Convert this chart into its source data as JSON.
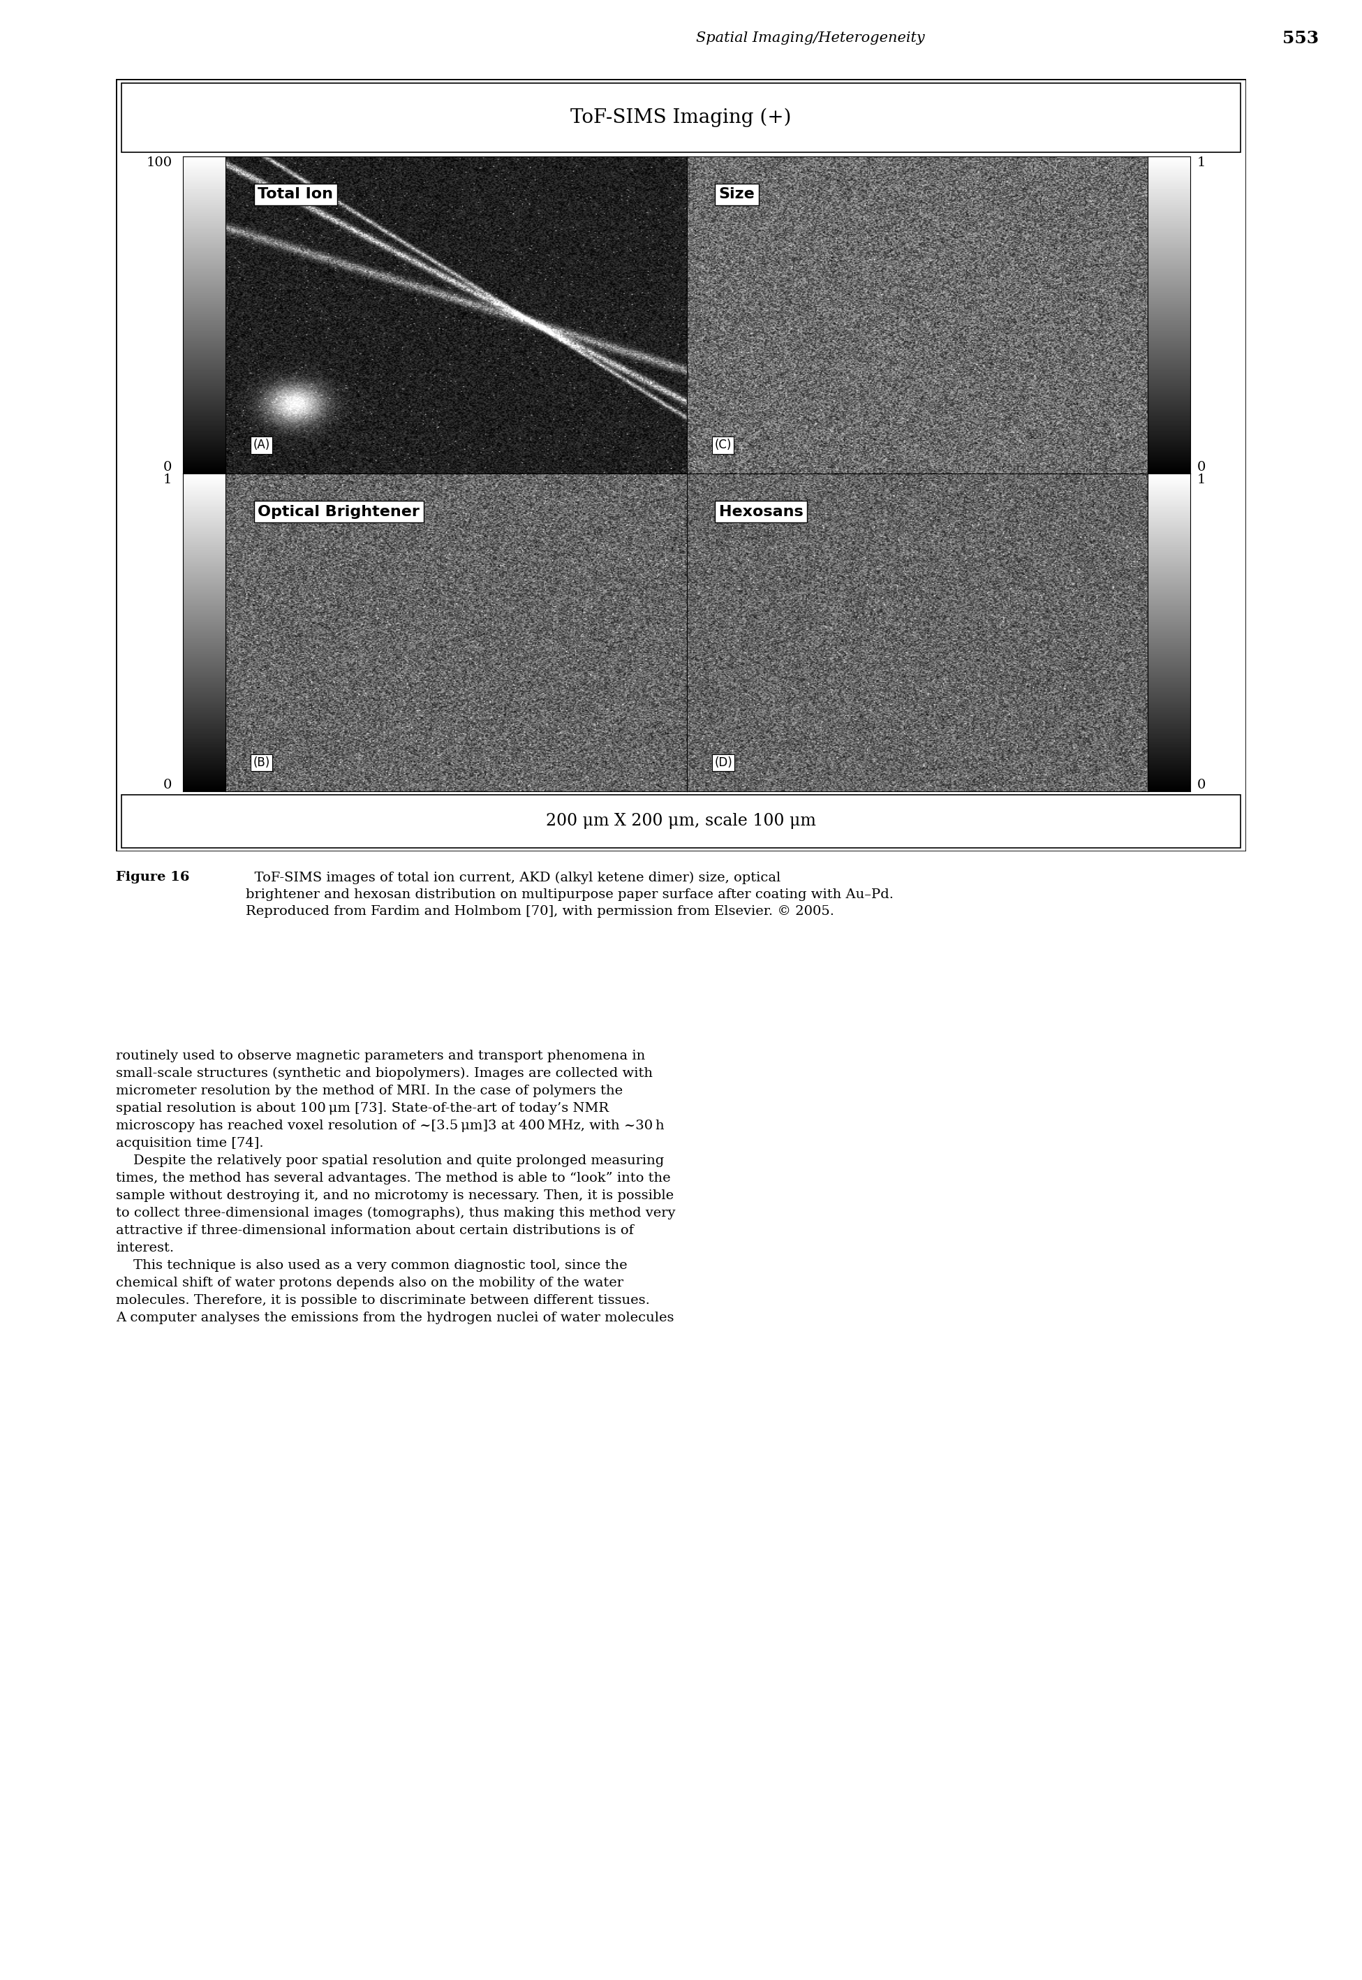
{
  "page_header": "Spatial Imaging/Heterogeneity",
  "page_number": "553",
  "tof_title": "ToF-SIMS Imaging (+)",
  "scale_bar_text": "200 μm X 200 μm, scale 100 μm",
  "figure_caption_bold": "Figure 16",
  "figure_caption_rest": "  ToF-SIMS images of total ion current, AKD (alkyl ketene dimer) size, optical\nbrightener and hexosan distribution on multipurpose paper surface after coating with Au–Pd.\nReproduced from Fardim and Holmbom [70], with permission from Elsevier. © 2005.",
  "panel_labels": [
    "Total Ion",
    "Size",
    "Optical Brightener",
    "Hexosans"
  ],
  "panel_ids": [
    "(A)",
    "(C)",
    "(B)",
    "(D)"
  ],
  "left_top_ticks": [
    "100",
    "0"
  ],
  "right_top_ticks": [
    "1",
    "0"
  ],
  "left_bot_ticks": [
    "1",
    "0"
  ],
  "right_bot_ticks": [
    "1",
    "0"
  ],
  "body_paragraphs": [
    "routinely used to observe magnetic parameters and transport phenomena in\nsmall-scale structures (synthetic and biopolymers). Images are collected with\nmicrometer resolution by the method of MRI. In the case of polymers the\nspatial resolution is about 100 μm [73]. State-of-the-art of today’s NMR\nmicroscopy has reached voxel resolution of ~[3.5 μm]3 at 400 MHz, with ~30 h\nacquisition time [74].",
    "    Despite the relatively poor spatial resolution and quite prolonged measuring\ntimes, the method has several advantages. The method is able to “look” into the\nsample without destroying it, and no microtomy is necessary. Then, it is possible\nto collect three-dimensional images (tomographs), thus making this method very\nattractive if three-dimensional information about certain distributions is of\ninterest.",
    "    This technique is also used as a very common diagnostic tool, since the\nchemical shift of water protons depends also on the mobility of the water\nmolecules. Therefore, it is possible to discriminate between different tissues.\nA computer analyses the emissions from the hydrogen nuclei of water molecules"
  ],
  "bg_color": "#ffffff"
}
